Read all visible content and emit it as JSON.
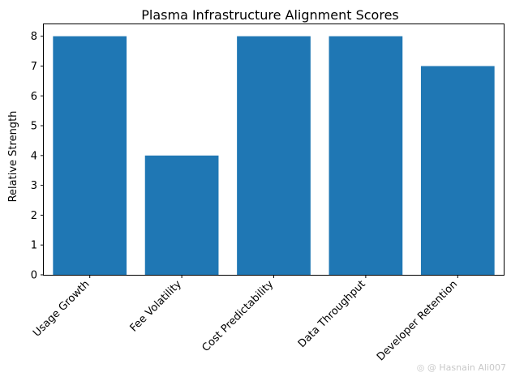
{
  "chart_data": {
    "type": "bar",
    "title": "Plasma Infrastructure Alignment Scores",
    "xlabel": "",
    "ylabel": "Relative Strength",
    "categories": [
      "Usage Growth",
      "Fee Volatility",
      "Cost Predictability",
      "Data Throughput",
      "Developer Retention"
    ],
    "values": [
      8,
      4,
      8,
      8,
      7
    ],
    "ylim": [
      0,
      8.4
    ],
    "yticks": [
      0,
      1,
      2,
      3,
      4,
      5,
      6,
      7,
      8
    ],
    "grid": false,
    "bar_color": "#1f77b4"
  },
  "watermark": "@ Hasnain Ali007"
}
